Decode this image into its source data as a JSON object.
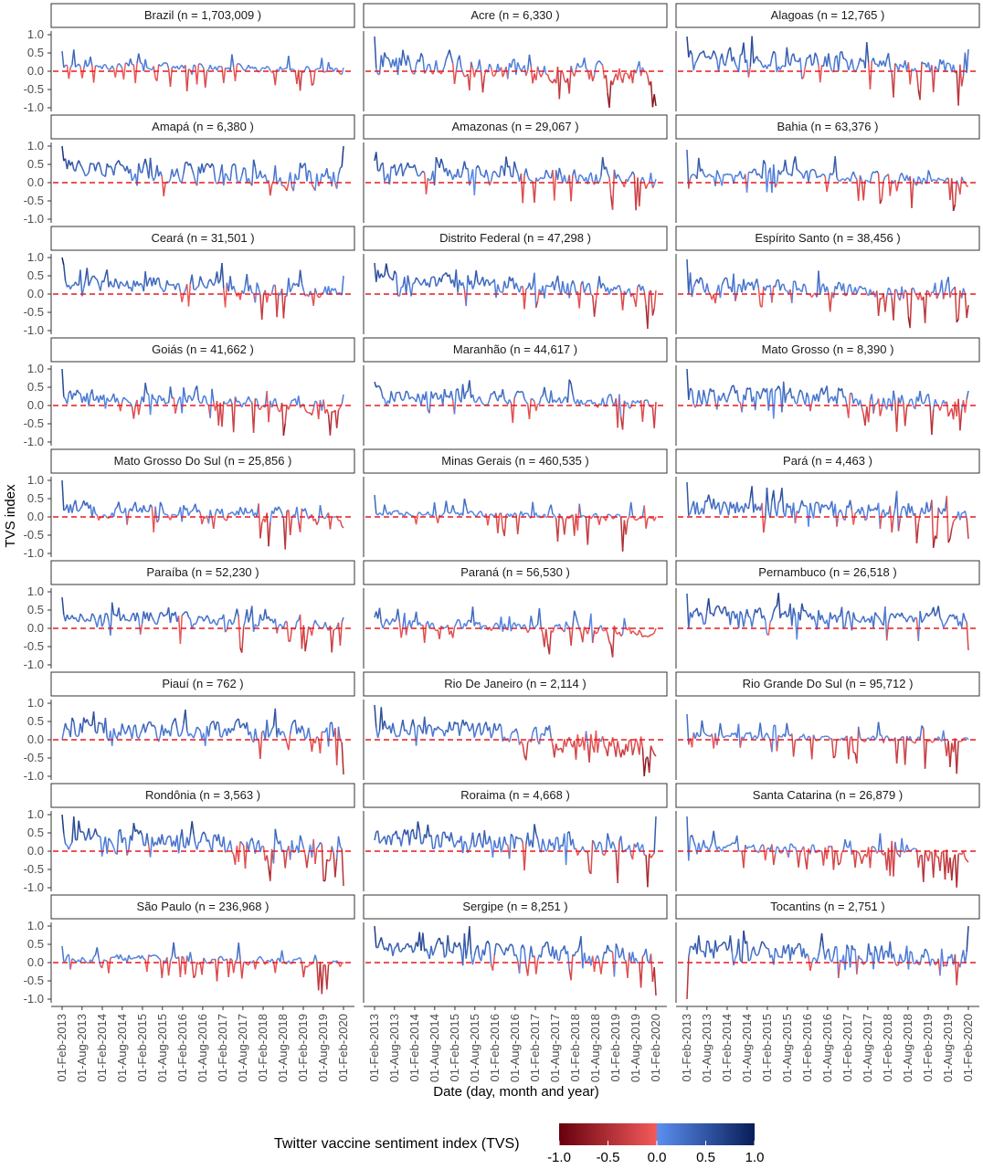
{
  "chart_data": {
    "type": "line",
    "ylabel": "TVS index",
    "xlabel": "Date (day, month and year)",
    "ylim": [
      -1.0,
      1.0
    ],
    "yticks": [
      "1.0",
      "0.5",
      "0.0",
      "-0.5",
      "-1.0"
    ],
    "xlim": [
      "2013-02-01",
      "2020-02-01"
    ],
    "xticks": [
      "01-Feb-2013",
      "01-Aug-2013",
      "01-Feb-2014",
      "01-Aug-2014",
      "01-Feb-2015",
      "01-Aug-2015",
      "01-Feb-2016",
      "01-Aug-2016",
      "01-Feb-2017",
      "01-Aug-2017",
      "01-Feb-2018",
      "01-Aug-2018",
      "01-Feb-2019",
      "01-Aug-2019",
      "01-Feb-2020"
    ],
    "reference_line": 0.0,
    "grid": false,
    "colors": {
      "neg_dark": "#67000d",
      "neg_light": "#f45b5b",
      "pos_light": "#5b8ff0",
      "pos_dark": "#081d58",
      "zero_line": "#e8191f"
    },
    "legend": {
      "title": "Twitter vaccine sentiment index (TVS)",
      "ticks": [
        "-1.0",
        "-0.5",
        "0.0",
        "0.5",
        "1.0"
      ],
      "placement": "bottom"
    },
    "panels": [
      {
        "label": "Brazil (n = 1,703,009 )",
        "level": 0.15,
        "vol": 0.09,
        "drift": -0.12,
        "start": 0.55,
        "end": 0.1
      },
      {
        "label": "Acre (n = 6,330 )",
        "level": 0.22,
        "vol": 0.26,
        "drift": -0.42,
        "start": 0.95,
        "end": -0.95
      },
      {
        "label": "Alagoas (n = 12,765 )",
        "level": 0.38,
        "vol": 0.24,
        "drift": -0.28,
        "start": 0.95,
        "end": 0.6
      },
      {
        "label": "Amapá (n = 6,380 )",
        "level": 0.35,
        "vol": 0.3,
        "drift": -0.3,
        "start": 1.0,
        "end": 1.0
      },
      {
        "label": "Amazonas (n = 29,067 )",
        "level": 0.3,
        "vol": 0.2,
        "drift": -0.25,
        "start": 0.6,
        "end": 0.1
      },
      {
        "label": "Bahia (n = 63,376 )",
        "level": 0.25,
        "vol": 0.14,
        "drift": -0.22,
        "start": 0.9,
        "end": -0.1
      },
      {
        "label": "Ceará (n = 31,501 )",
        "level": 0.28,
        "vol": 0.18,
        "drift": -0.22,
        "start": 1.0,
        "end": 0.5
      },
      {
        "label": "Distrito Federal (n = 47,298 )",
        "level": 0.38,
        "vol": 0.2,
        "drift": -0.38,
        "start": 0.85,
        "end": 0.1
      },
      {
        "label": "Espírito Santo (n = 38,456 )",
        "level": 0.25,
        "vol": 0.2,
        "drift": -0.35,
        "start": 0.95,
        "end": -0.3
      },
      {
        "label": "Goiás (n = 41,662 )",
        "level": 0.22,
        "vol": 0.18,
        "drift": -0.3,
        "start": 1.0,
        "end": 0.3
      },
      {
        "label": "Maranhão (n = 44,617 )",
        "level": 0.3,
        "vol": 0.17,
        "drift": -0.25,
        "start": 0.65,
        "end": 0.1
      },
      {
        "label": "Mato Grosso (n = 8,390 )",
        "level": 0.32,
        "vol": 0.24,
        "drift": -0.3,
        "start": 1.0,
        "end": 0.4
      },
      {
        "label": "Mato Grosso Do Sul (n = 25,856 )",
        "level": 0.25,
        "vol": 0.2,
        "drift": -0.3,
        "start": 1.0,
        "end": -0.3
      },
      {
        "label": "Minas Gerais (n = 460,535 )",
        "level": 0.1,
        "vol": 0.08,
        "drift": -0.15,
        "start": 0.6,
        "end": 0.0
      },
      {
        "label": "Pará (n = 4,463 )",
        "level": 0.3,
        "vol": 0.28,
        "drift": -0.35,
        "start": 0.95,
        "end": -0.6
      },
      {
        "label": "Paraíba (n = 52,230 )",
        "level": 0.32,
        "vol": 0.16,
        "drift": -0.25,
        "start": 0.85,
        "end": 0.3
      },
      {
        "label": "Paraná (n = 56,530 )",
        "level": 0.12,
        "vol": 0.14,
        "drift": -0.25,
        "start": 0.3,
        "end": 0.0
      },
      {
        "label": "Pernambuco (n = 26,518 )",
        "level": 0.4,
        "vol": 0.18,
        "drift": -0.25,
        "start": 0.95,
        "end": -0.6
      },
      {
        "label": "Piauí (n = 762 )",
        "level": 0.3,
        "vol": 0.25,
        "drift": -0.15,
        "start": 0.0,
        "end": -0.95
      },
      {
        "label": "Rio De Janeiro (n = 2,114 )",
        "level": 0.35,
        "vol": 0.28,
        "drift": -0.65,
        "start": 0.95,
        "end": -0.45
      },
      {
        "label": "Rio Grande Do Sul (n = 95,712 )",
        "level": 0.12,
        "vol": 0.09,
        "drift": -0.15,
        "start": 0.7,
        "end": 0.0
      },
      {
        "label": "Rondônia (n = 3,563 )",
        "level": 0.38,
        "vol": 0.24,
        "drift": -0.4,
        "start": 1.0,
        "end": -0.95
      },
      {
        "label": "Roraima (n = 4,668 )",
        "level": 0.35,
        "vol": 0.26,
        "drift": -0.3,
        "start": 0.3,
        "end": 0.95
      },
      {
        "label": "Santa Catarina (n = 26,879 )",
        "level": 0.12,
        "vol": 0.15,
        "drift": -0.22,
        "start": 0.95,
        "end": -0.3
      },
      {
        "label": "São Paulo (n = 236,968 )",
        "level": 0.12,
        "vol": 0.1,
        "drift": -0.15,
        "start": 0.45,
        "end": 0.0
      },
      {
        "label": "Sergipe (n = 8,251 )",
        "level": 0.4,
        "vol": 0.24,
        "drift": -0.3,
        "start": 1.0,
        "end": -0.9
      },
      {
        "label": "Tocantins (n = 2,751 )",
        "level": 0.32,
        "vol": 0.26,
        "drift": -0.22,
        "start": -1.0,
        "end": 1.0
      }
    ]
  }
}
